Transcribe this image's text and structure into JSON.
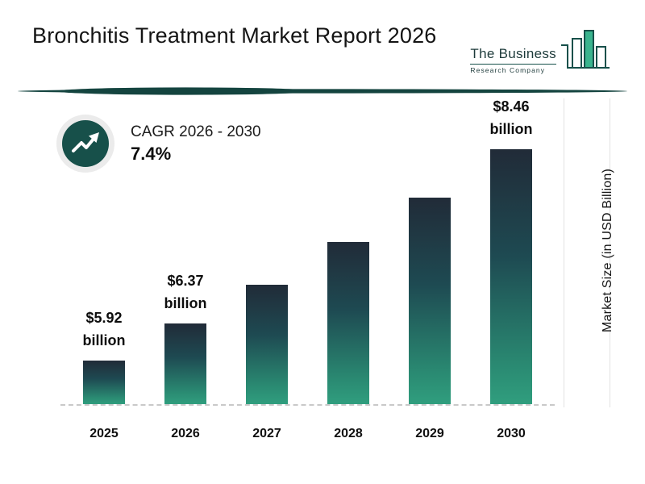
{
  "header": {
    "title": "Bronchitis Treatment Market Report 2026",
    "logo": {
      "line1": "The Business",
      "line2": "Research Company"
    }
  },
  "cagr": {
    "label": "CAGR 2026 - 2030",
    "value": "7.4%"
  },
  "chart_data": {
    "type": "bar",
    "title": "Bronchitis Treatment Market Report 2026",
    "xlabel": "",
    "ylabel": "Market Size (in USD Billion)",
    "categories": [
      "2025",
      "2026",
      "2027",
      "2028",
      "2029",
      "2030"
    ],
    "values": [
      5.92,
      6.37,
      6.84,
      7.35,
      7.88,
      8.46
    ],
    "data_labels": [
      "$5.92 billion",
      "$6.37 billion",
      null,
      null,
      null,
      "$8.46 billion"
    ],
    "unit": "USD Billion",
    "ylim": [
      5.4,
      8.6
    ],
    "grid": "off",
    "legend": "none",
    "baseline_style": "dashed",
    "bar_gradient_top": "#212b38",
    "bar_gradient_bottom": "#309e7e"
  },
  "colors": {
    "accent_teal": "#17504a",
    "divider_teal": "#14443f",
    "logo_green": "#3ab48e",
    "text_dark": "#141414"
  }
}
